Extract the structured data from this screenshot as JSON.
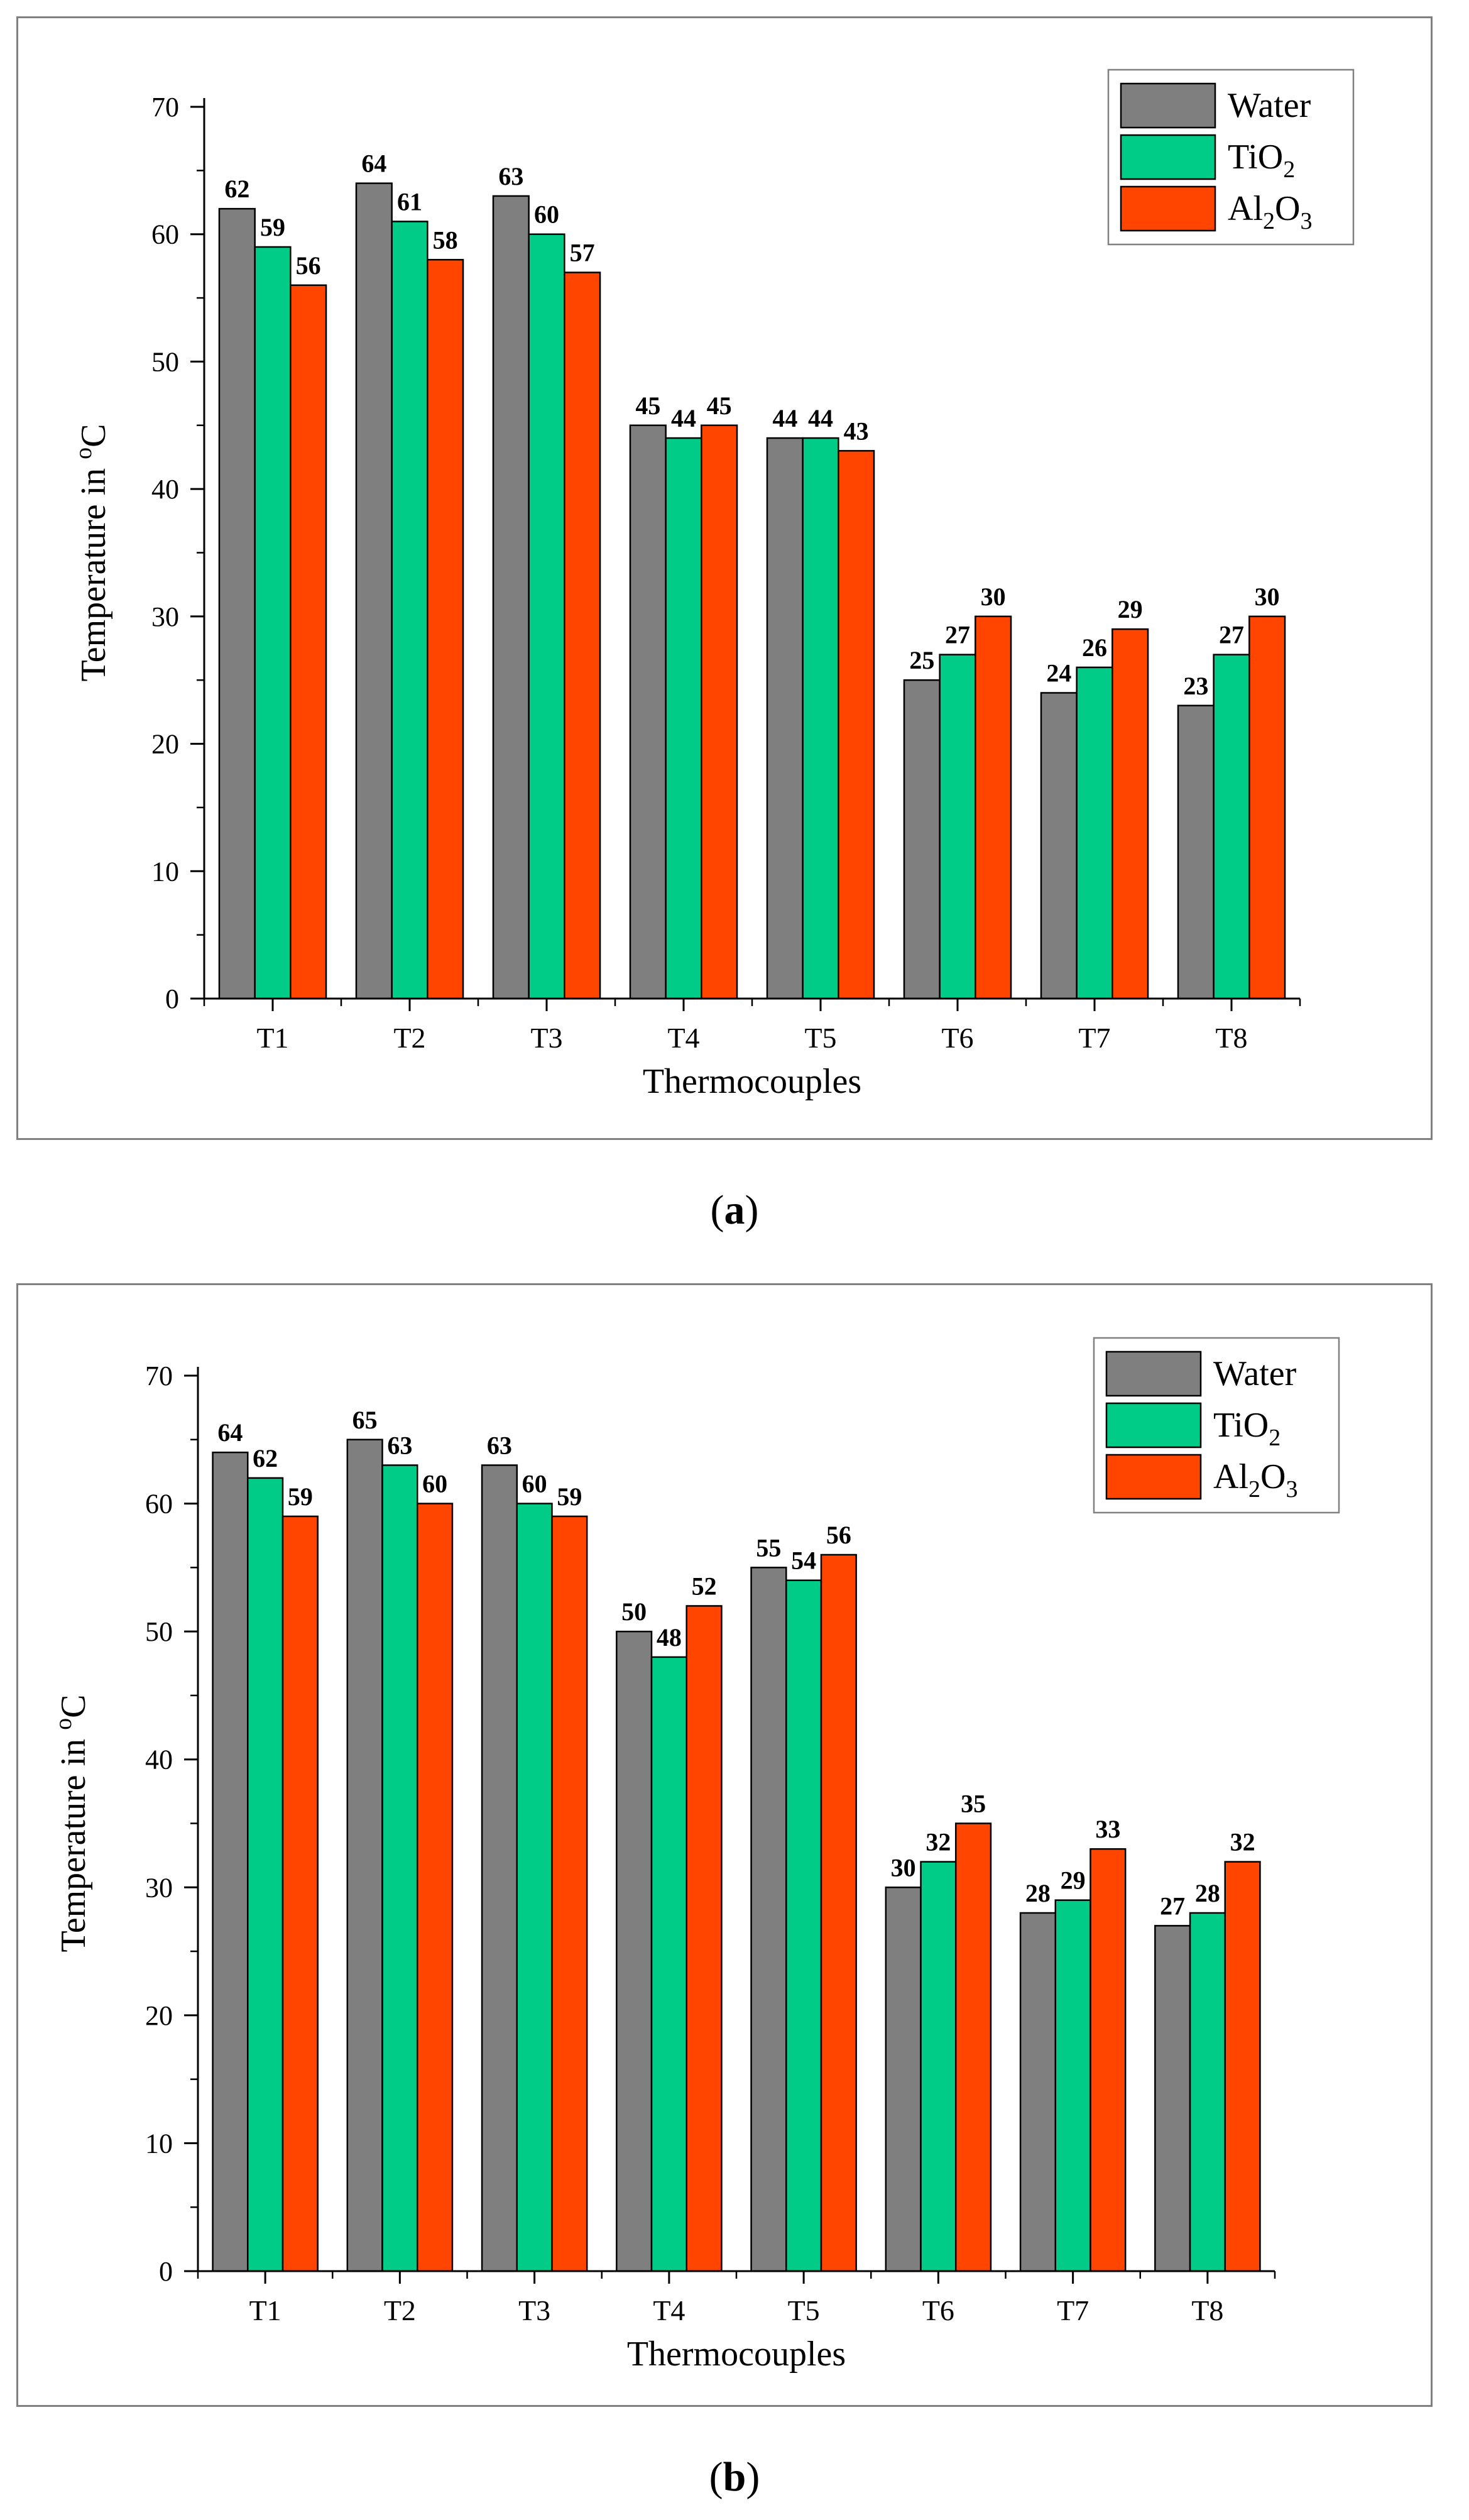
{
  "chart_data": [
    {
      "type": "bar",
      "panel": "a",
      "caption_label": "a",
      "xlabel": "Thermocouples",
      "ylabel_main": "Temperature in ",
      "ylabel_sup": "o",
      "ylabel_unit": "C",
      "ylim": [
        0,
        70
      ],
      "yticks": [
        0,
        10,
        20,
        30,
        40,
        50,
        60,
        70
      ],
      "categories": [
        "T1",
        "T2",
        "T3",
        "T4",
        "T5",
        "T6",
        "T7",
        "T8"
      ],
      "legend_position": "top-right",
      "series": [
        {
          "name": "Water",
          "base": "Water",
          "sub": "",
          "base2": "",
          "sub2": "",
          "color": "#7f7f7f",
          "values": [
            62,
            64,
            63,
            45,
            44,
            25,
            24,
            23
          ]
        },
        {
          "name": "TiO2",
          "base": "TiO",
          "sub": "2",
          "base2": "",
          "sub2": "",
          "color": "#00cc88",
          "values": [
            59,
            61,
            60,
            44,
            44,
            27,
            26,
            27
          ]
        },
        {
          "name": "Al2O3",
          "base": "Al",
          "sub": "2",
          "base2": "O",
          "sub2": "3",
          "color": "#ff4500",
          "values": [
            56,
            58,
            57,
            45,
            43,
            30,
            29,
            30
          ]
        }
      ]
    },
    {
      "type": "bar",
      "panel": "b",
      "caption_label": "b",
      "xlabel": "Thermocouples",
      "ylabel_main": "Temperature in ",
      "ylabel_sup": "o",
      "ylabel_unit": "C",
      "ylim": [
        0,
        70
      ],
      "yticks": [
        0,
        10,
        20,
        30,
        40,
        50,
        60,
        70
      ],
      "categories": [
        "T1",
        "T2",
        "T3",
        "T4",
        "T5",
        "T6",
        "T7",
        "T8"
      ],
      "legend_position": "top-right",
      "series": [
        {
          "name": "Water",
          "base": "Water",
          "sub": "",
          "base2": "",
          "sub2": "",
          "color": "#7f7f7f",
          "values": [
            64,
            65,
            63,
            50,
            55,
            30,
            28,
            27
          ]
        },
        {
          "name": "TiO2",
          "base": "TiO",
          "sub": "2",
          "base2": "",
          "sub2": "",
          "color": "#00cc88",
          "values": [
            62,
            63,
            60,
            48,
            54,
            32,
            29,
            28
          ]
        },
        {
          "name": "Al2O3",
          "base": "Al",
          "sub": "2",
          "base2": "O",
          "sub2": "3",
          "color": "#ff4500",
          "values": [
            59,
            60,
            59,
            52,
            56,
            35,
            33,
            32
          ]
        }
      ]
    }
  ]
}
